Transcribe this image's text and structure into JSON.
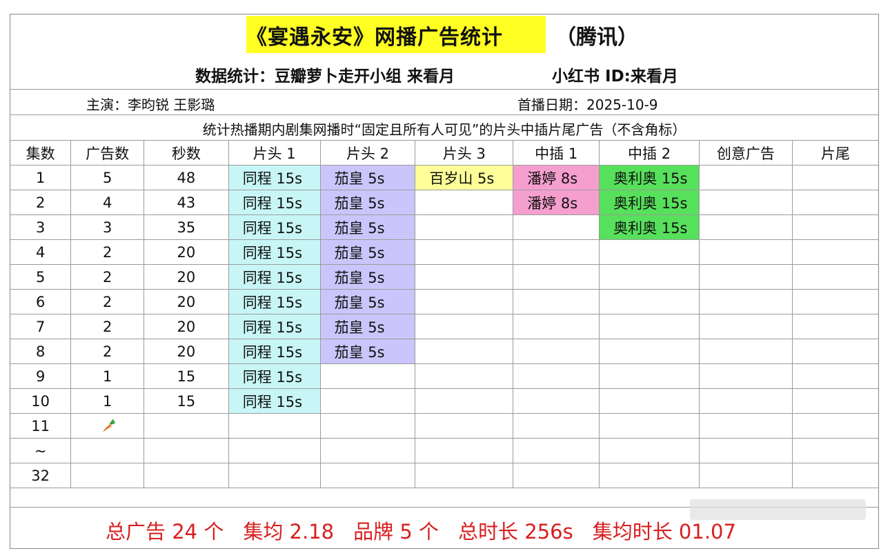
{
  "title": {
    "main": "《宴遇永安》网播广告统计",
    "platform": "（腾讯）"
  },
  "subtitle": {
    "stats": "数据统计：豆瓣萝卜走开小组 来看月",
    "xhs": "小红书 ID:来看月"
  },
  "info": {
    "cast": "主演：李昀锐 王影璐",
    "premiere": "首播日期：2025-10-9"
  },
  "note": "统计热播期内剧集网播时“固定且所有人可见”的片头中插片尾广告（不含角标）",
  "columns": [
    "集数",
    "广告数",
    "秒数",
    "片头 1",
    "片头 2",
    "片头 3",
    "中插 1",
    "中插 2",
    "创意广告",
    "片尾"
  ],
  "rows": [
    [
      "1",
      "5",
      "48",
      "同程 15s",
      "茄皇 5s",
      "百岁山 5s",
      "潘婷 8s",
      "奥利奥 15s",
      "",
      ""
    ],
    [
      "2",
      "4",
      "43",
      "同程 15s",
      "茄皇 5s",
      "",
      "潘婷 8s",
      "奥利奥 15s",
      "",
      ""
    ],
    [
      "3",
      "3",
      "35",
      "同程 15s",
      "茄皇 5s",
      "",
      "",
      "奥利奥 15s",
      "",
      ""
    ],
    [
      "4",
      "2",
      "20",
      "同程 15s",
      "茄皇 5s",
      "",
      "",
      "",
      "",
      ""
    ],
    [
      "5",
      "2",
      "20",
      "同程 15s",
      "茄皇 5s",
      "",
      "",
      "",
      "",
      ""
    ],
    [
      "6",
      "2",
      "20",
      "同程 15s",
      "茄皇 5s",
      "",
      "",
      "",
      "",
      ""
    ],
    [
      "7",
      "2",
      "20",
      "同程 15s",
      "茄皇 5s",
      "",
      "",
      "",
      "",
      ""
    ],
    [
      "8",
      "2",
      "20",
      "同程 15s",
      "茄皇 5s",
      "",
      "",
      "",
      "",
      ""
    ],
    [
      "9",
      "1",
      "15",
      "同程 15s",
      "",
      "",
      "",
      "",
      "",
      ""
    ],
    [
      "10",
      "1",
      "15",
      "同程 15s",
      "",
      "",
      "",
      "",
      "",
      ""
    ],
    [
      "11",
      "",
      "",
      "",
      "",
      "",
      "",
      "",
      "",
      ""
    ],
    [
      "~",
      "",
      "",
      "",
      "",
      "",
      "",
      "",
      "",
      ""
    ],
    [
      "32",
      "",
      "",
      "",
      "",
      "",
      "",
      "",
      "",
      ""
    ]
  ],
  "carrot_icon": "carrot-icon",
  "brand_colors": {
    "同程": "#c8f6f6",
    "茄皇": "#cac6fb",
    "百岁山": "#ffff99",
    "潘婷": "#f59fcf",
    "奥利奥": "#57e05b"
  },
  "summary": {
    "total_ads": "总广告 24 个",
    "avg_per_ep": "集均 2.18",
    "brands": "品牌 5 个",
    "total_duration": "总时长 256s",
    "avg_duration": "集均时长 01.07"
  }
}
